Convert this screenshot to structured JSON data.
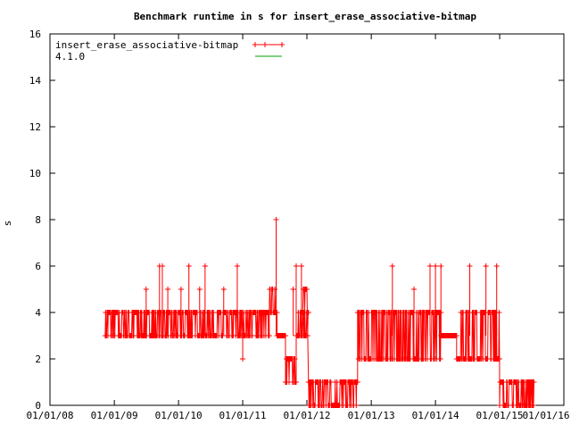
{
  "chart_data": {
    "type": "line",
    "title": "Benchmark runtime in s for insert_erase_associative-bitmap",
    "xlabel": "",
    "ylabel": "s",
    "xlim": [
      "2008-01-01",
      "2015-12-31"
    ],
    "ylim": [
      0,
      16
    ],
    "grid": false,
    "legend_position": "top-left",
    "x_ticks": [
      "01/01/08",
      "01/01/09",
      "01/01/10",
      "01/01/11",
      "01/01/12",
      "01/01/13",
      "01/01/14",
      "01/01/15",
      "01/01/16"
    ],
    "y_ticks": [
      "0",
      "2",
      "4",
      "6",
      "8",
      "10",
      "12",
      "14",
      "16"
    ],
    "series": [
      {
        "name": "insert_erase_associative-bitmap",
        "color": "#ff0000",
        "marker": "plus",
        "values_description_free": true,
        "segments": [
          {
            "x_start": "2008-11-10",
            "x_end": "2011-06-01",
            "low": 3,
            "high": 4
          },
          {
            "x_start": "2011-06-01",
            "x_end": "2011-07-15",
            "low": 4,
            "high": 5
          },
          {
            "x_start": "2011-07-15",
            "x_end": "2011-09-01",
            "low": 3,
            "high": 3
          },
          {
            "x_start": "2011-09-01",
            "x_end": "2011-11-01",
            "low": 1,
            "high": 2
          },
          {
            "x_start": "2011-11-01",
            "x_end": "2012-01-10",
            "low": 3,
            "high": 4
          },
          {
            "x_start": "2011-12-01",
            "x_end": "2012-01-01",
            "low": 4,
            "high": 5
          },
          {
            "x_start": "2012-01-10",
            "x_end": "2012-10-15",
            "low": 0,
            "high": 1
          },
          {
            "x_start": "2012-10-15",
            "x_end": "2014-02-01",
            "low": 2,
            "high": 4
          },
          {
            "x_start": "2014-02-01",
            "x_end": "2014-05-01",
            "low": 3,
            "high": 3
          },
          {
            "x_start": "2014-05-01",
            "x_end": "2014-12-31",
            "low": 2,
            "high": 4
          },
          {
            "x_start": "2015-01-01",
            "x_end": "2015-07-15",
            "low": 0,
            "high": 1
          }
        ],
        "spikes": [
          {
            "x": "2009-07-01",
            "y": 5
          },
          {
            "x": "2009-09-15",
            "y": 6
          },
          {
            "x": "2009-10-01",
            "y": 6
          },
          {
            "x": "2009-11-01",
            "y": 5
          },
          {
            "x": "2010-01-15",
            "y": 5
          },
          {
            "x": "2010-03-01",
            "y": 6
          },
          {
            "x": "2010-05-01",
            "y": 5
          },
          {
            "x": "2010-06-01",
            "y": 6
          },
          {
            "x": "2010-09-15",
            "y": 5
          },
          {
            "x": "2010-12-01",
            "y": 6
          },
          {
            "x": "2011-01-01",
            "y": 2
          },
          {
            "x": "2011-07-10",
            "y": 8
          },
          {
            "x": "2011-10-15",
            "y": 5
          },
          {
            "x": "2011-11-01",
            "y": 6
          },
          {
            "x": "2011-12-01",
            "y": 6
          },
          {
            "x": "2013-05-01",
            "y": 6
          },
          {
            "x": "2013-09-01",
            "y": 5
          },
          {
            "x": "2013-12-01",
            "y": 6
          },
          {
            "x": "2014-01-01",
            "y": 6
          },
          {
            "x": "2014-02-01",
            "y": 6
          },
          {
            "x": "2014-07-15",
            "y": 6
          },
          {
            "x": "2014-10-15",
            "y": 6
          },
          {
            "x": "2014-12-15",
            "y": 6
          }
        ]
      },
      {
        "name": "4.1.0",
        "color": "#00a000",
        "marker": "none",
        "values": []
      }
    ]
  }
}
